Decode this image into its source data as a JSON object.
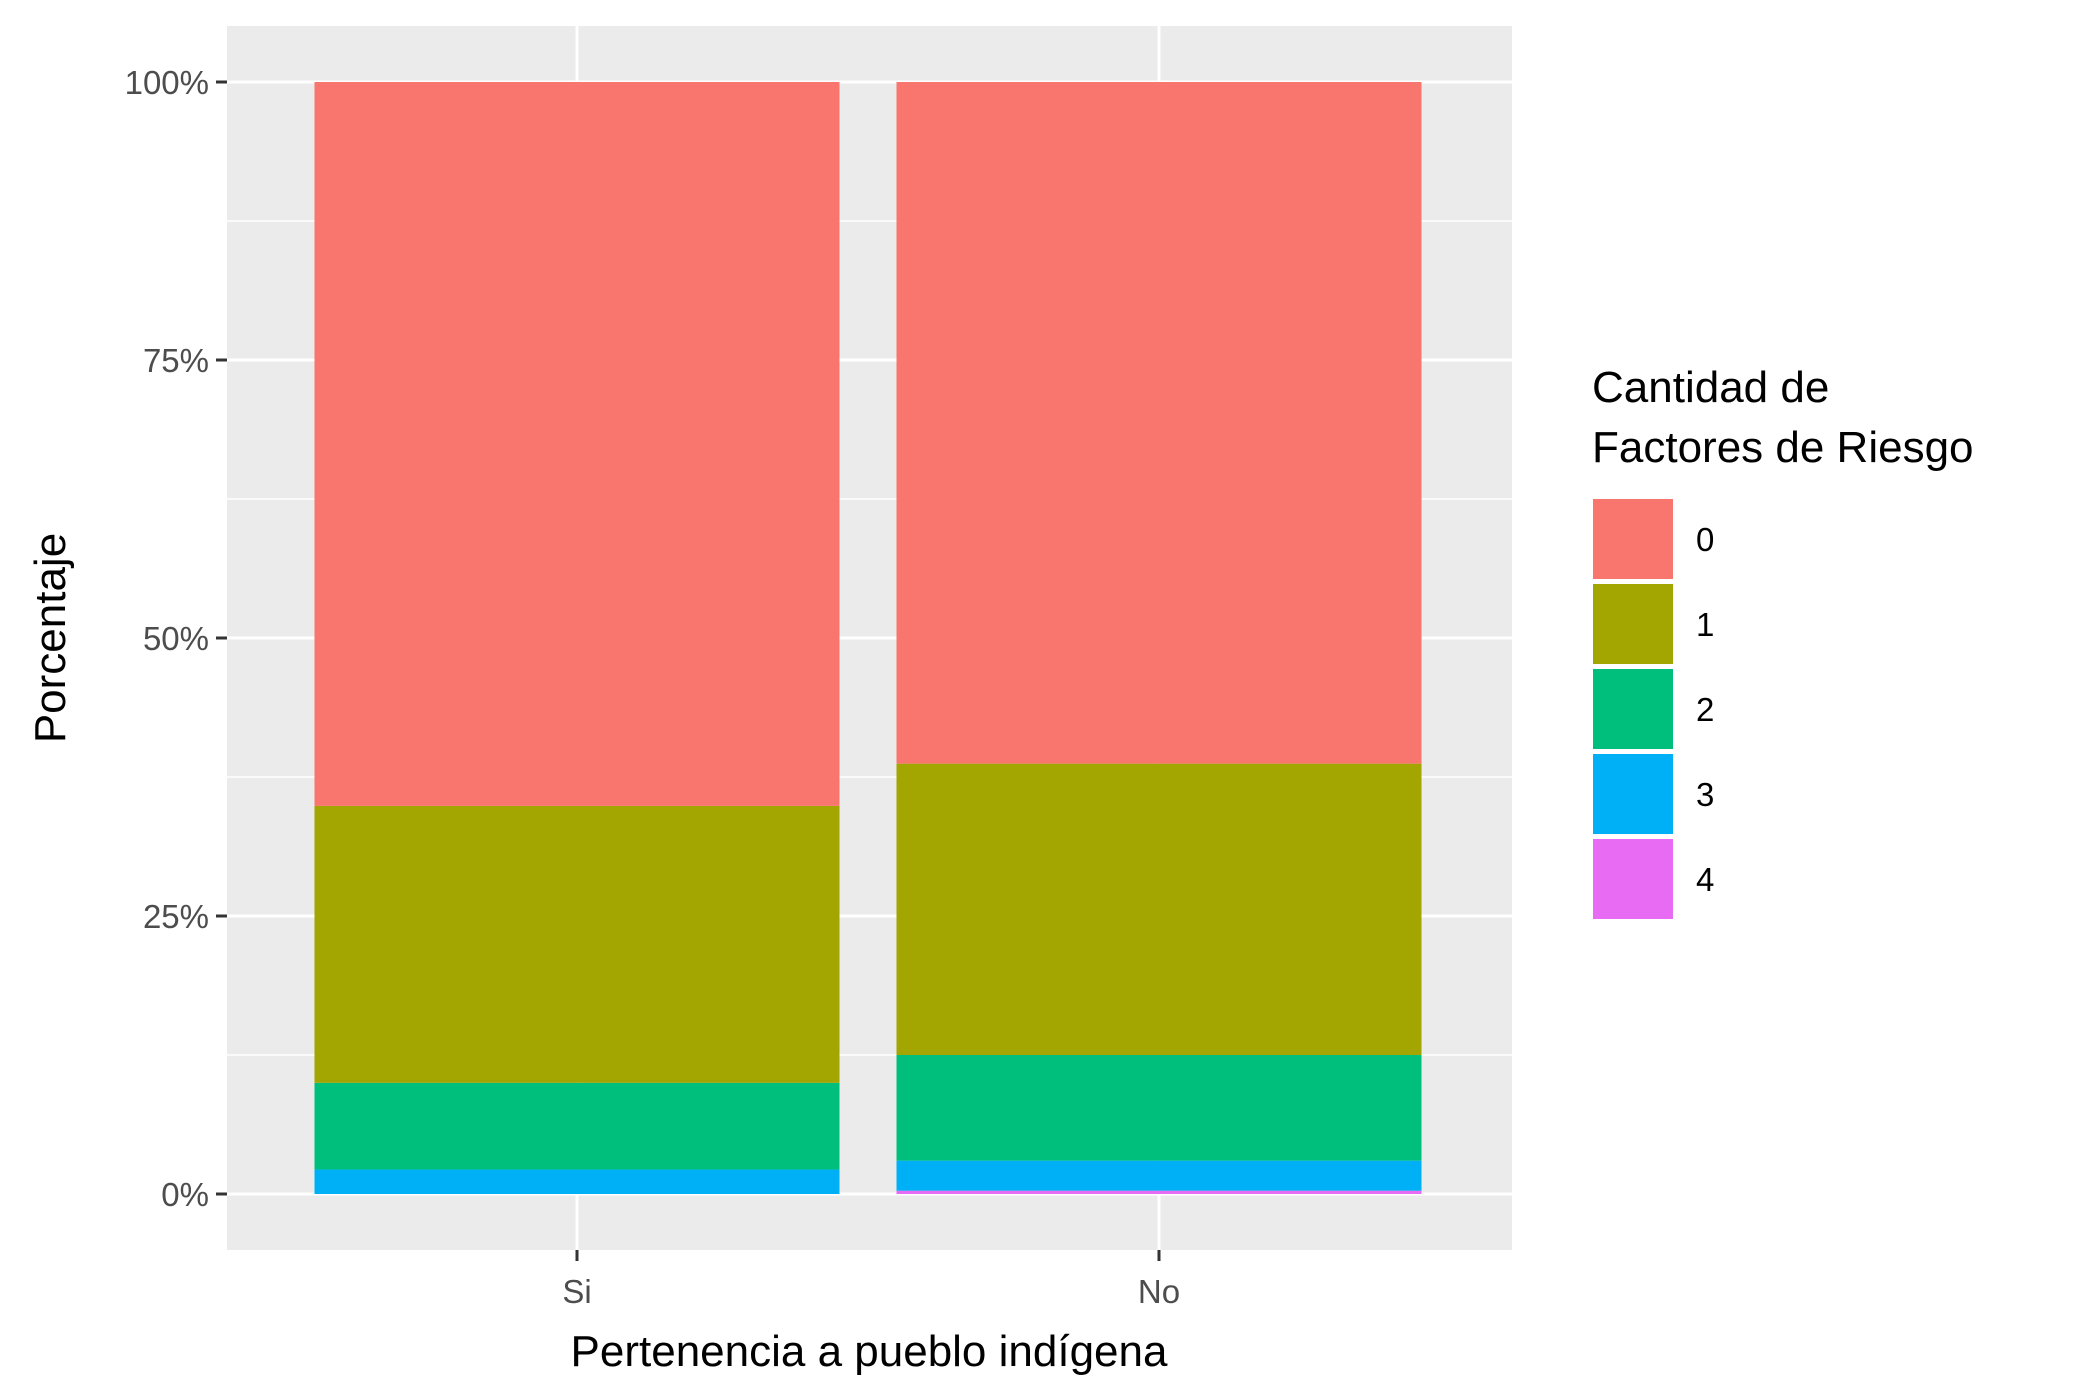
{
  "chart_data": {
    "type": "bar",
    "stacked": true,
    "percent": true,
    "categories": [
      "Si",
      "No"
    ],
    "xlabel": "Pertenencia a pueblo indígena",
    "ylabel": "Porcentaje",
    "ylim": [
      0,
      100
    ],
    "yticks": [
      "0%",
      "25%",
      "50%",
      "75%",
      "100%"
    ],
    "grid": true,
    "legend": {
      "title_line1": "Cantidad de",
      "title_line2": "Factores de Riesgo",
      "position": "right"
    },
    "series": [
      {
        "name": "0",
        "color": "#F8766D",
        "values": [
          65.1,
          61.3
        ]
      },
      {
        "name": "1",
        "color": "#A3A500",
        "values": [
          24.9,
          26.2
        ]
      },
      {
        "name": "2",
        "color": "#00BF7D",
        "values": [
          7.8,
          9.5
        ]
      },
      {
        "name": "3",
        "color": "#00B0F6",
        "values": [
          2.2,
          2.7
        ]
      },
      {
        "name": "4",
        "color": "#E76BF3",
        "values": [
          0.0,
          0.3
        ]
      }
    ]
  }
}
